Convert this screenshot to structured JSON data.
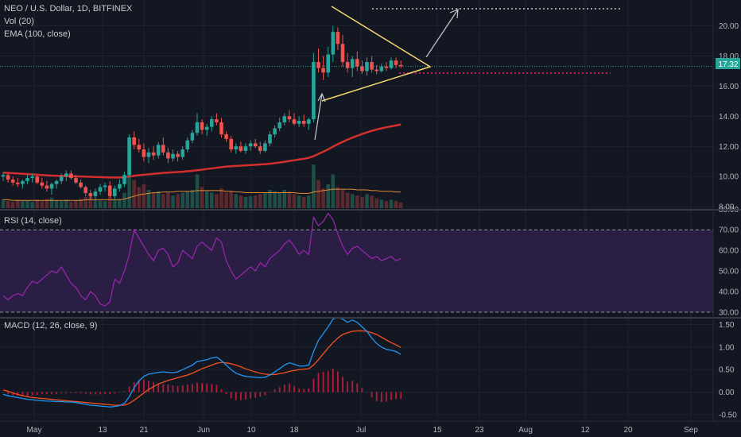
{
  "legend": {
    "symbol": "NEO / U.S. Dollar, 1D, BITFINEX",
    "volume": "Vol (20)",
    "ema": "EMA (100, close)",
    "rsi": "RSI (14, close)",
    "macd": "MACD (12, 26, close, 9)"
  },
  "price_badge": "17.32",
  "colors": {
    "up": "#26a69a",
    "down": "#ef5350",
    "ema": "#d32f2f",
    "volume_ma": "#e08a35",
    "rsi": "#9c27b0",
    "rsi_band": "#2a1e45",
    "macd": "#2196f3",
    "signal": "#f4511e",
    "triangle": "#f5d76e",
    "arrow": "#c7c9d1",
    "background": "#131722"
  },
  "chart_data": [
    {
      "type": "candlestick",
      "title": "NEO / U.S. Dollar, 1D, BITFINEX",
      "x_ticks": [
        "May",
        "13",
        "21",
        "Jun",
        "10",
        "18",
        "Jul",
        "15",
        "23",
        "Aug",
        "12",
        "20",
        "Sep"
      ],
      "y_ticks": [
        "8.00",
        "10.00",
        "12.00",
        "14.00",
        "16.00",
        "18.00",
        "20.00"
      ],
      "ylim": [
        7.9,
        21.4
      ],
      "last_price": 17.32,
      "candles": [
        [
          10.0,
          10.3,
          9.7,
          10.1
        ],
        [
          10.1,
          10.2,
          9.6,
          9.8
        ],
        [
          9.8,
          10.0,
          9.4,
          9.6
        ],
        [
          9.6,
          9.9,
          9.3,
          9.5
        ],
        [
          9.5,
          9.8,
          9.2,
          9.7
        ],
        [
          9.7,
          10.1,
          9.5,
          9.9
        ],
        [
          9.9,
          10.2,
          9.6,
          10.0
        ],
        [
          10.0,
          10.1,
          9.5,
          9.6
        ],
        [
          9.6,
          9.9,
          9.2,
          9.4
        ],
        [
          9.4,
          9.7,
          9.0,
          9.2
        ],
        [
          9.2,
          9.6,
          8.8,
          9.5
        ],
        [
          9.5,
          9.8,
          9.2,
          9.7
        ],
        [
          9.7,
          10.2,
          9.5,
          10.0
        ],
        [
          10.0,
          10.4,
          9.7,
          10.2
        ],
        [
          10.2,
          10.4,
          9.8,
          9.9
        ],
        [
          9.9,
          10.1,
          9.5,
          9.6
        ],
        [
          9.6,
          9.8,
          9.2,
          9.3
        ],
        [
          9.3,
          9.4,
          8.7,
          8.9
        ],
        [
          8.9,
          9.1,
          8.5,
          8.7
        ],
        [
          8.7,
          9.2,
          8.5,
          9.0
        ],
        [
          9.0,
          9.5,
          8.8,
          9.3
        ],
        [
          9.3,
          9.6,
          9.0,
          9.4
        ],
        [
          9.4,
          9.7,
          8.6,
          8.7
        ],
        [
          8.7,
          9.4,
          8.5,
          9.2
        ],
        [
          9.2,
          9.8,
          9.0,
          9.5
        ],
        [
          9.5,
          10.3,
          9.3,
          10.1
        ],
        [
          10.1,
          12.8,
          10.0,
          12.6
        ],
        [
          12.6,
          13.0,
          11.8,
          12.1
        ],
        [
          12.1,
          12.5,
          11.6,
          11.8
        ],
        [
          11.8,
          12.2,
          11.0,
          11.3
        ],
        [
          11.3,
          11.9,
          10.9,
          11.6
        ],
        [
          11.6,
          12.0,
          11.1,
          11.4
        ],
        [
          11.4,
          12.3,
          11.2,
          12.1
        ],
        [
          12.1,
          12.6,
          11.4,
          11.6
        ],
        [
          11.6,
          11.9,
          10.9,
          11.2
        ],
        [
          11.2,
          11.8,
          11.0,
          11.5
        ],
        [
          11.5,
          11.7,
          11.0,
          11.3
        ],
        [
          11.3,
          12.0,
          11.1,
          11.8
        ],
        [
          11.8,
          12.6,
          11.6,
          12.4
        ],
        [
          12.4,
          13.1,
          12.2,
          12.9
        ],
        [
          12.9,
          14.2,
          12.7,
          13.6
        ],
        [
          13.6,
          13.8,
          12.8,
          13.1
        ],
        [
          13.1,
          13.5,
          12.7,
          13.3
        ],
        [
          13.3,
          14.0,
          13.0,
          13.8
        ],
        [
          13.8,
          14.2,
          13.4,
          13.6
        ],
        [
          13.6,
          13.9,
          12.6,
          12.8
        ],
        [
          12.8,
          13.0,
          12.3,
          12.5
        ],
        [
          12.5,
          12.7,
          11.6,
          11.8
        ],
        [
          11.8,
          12.2,
          11.5,
          12.0
        ],
        [
          12.0,
          12.3,
          11.6,
          11.7
        ],
        [
          11.7,
          12.2,
          11.5,
          12.0
        ],
        [
          12.0,
          12.4,
          11.7,
          12.2
        ],
        [
          12.2,
          12.5,
          11.9,
          12.0
        ],
        [
          12.0,
          12.3,
          11.5,
          11.7
        ],
        [
          11.7,
          12.4,
          11.6,
          12.2
        ],
        [
          12.2,
          13.0,
          12.0,
          12.8
        ],
        [
          12.8,
          13.4,
          12.6,
          13.2
        ],
        [
          13.2,
          13.9,
          13.0,
          13.6
        ],
        [
          13.6,
          14.2,
          13.4,
          14.0
        ],
        [
          14.0,
          14.4,
          13.6,
          13.8
        ],
        [
          13.8,
          14.2,
          13.4,
          13.5
        ],
        [
          13.5,
          14.0,
          13.3,
          13.7
        ],
        [
          13.7,
          14.1,
          13.3,
          13.5
        ],
        [
          13.5,
          13.9,
          13.1,
          13.8
        ],
        [
          13.8,
          18.2,
          13.6,
          17.6
        ],
        [
          17.6,
          18.5,
          16.9,
          17.2
        ],
        [
          17.2,
          18.0,
          16.4,
          16.9
        ],
        [
          16.9,
          18.6,
          16.6,
          18.1
        ],
        [
          18.1,
          20.0,
          17.6,
          19.6
        ],
        [
          19.6,
          19.9,
          18.4,
          18.8
        ],
        [
          18.8,
          19.4,
          17.3,
          17.6
        ],
        [
          17.6,
          18.2,
          16.9,
          17.2
        ],
        [
          17.2,
          18.0,
          16.6,
          17.8
        ],
        [
          17.8,
          18.3,
          17.0,
          17.3
        ],
        [
          17.3,
          17.7,
          16.8,
          17.0
        ],
        [
          17.0,
          17.9,
          16.7,
          17.6
        ],
        [
          17.6,
          18.0,
          16.9,
          17.1
        ],
        [
          17.1,
          17.4,
          16.8,
          17.0
        ],
        [
          17.0,
          17.5,
          16.9,
          17.3
        ],
        [
          17.3,
          17.6,
          17.0,
          17.2
        ],
        [
          17.2,
          17.9,
          17.1,
          17.7
        ],
        [
          17.7,
          17.9,
          17.2,
          17.4
        ],
        [
          17.4,
          17.7,
          17.2,
          17.32
        ]
      ],
      "volume": [
        13,
        10,
        9,
        12,
        10,
        11,
        9,
        12,
        10,
        13,
        15,
        11,
        10,
        12,
        9,
        11,
        13,
        16,
        18,
        12,
        11,
        10,
        16,
        12,
        13,
        22,
        58,
        40,
        30,
        34,
        26,
        22,
        24,
        20,
        22,
        18,
        20,
        22,
        24,
        26,
        48,
        30,
        24,
        22,
        20,
        28,
        22,
        24,
        20,
        18,
        16,
        17,
        18,
        20,
        22,
        26,
        24,
        22,
        26,
        24,
        20,
        18,
        16,
        18,
        62,
        40,
        28,
        34,
        48,
        30,
        26,
        22,
        20,
        18,
        16,
        20,
        18,
        14,
        12,
        10,
        12,
        10,
        8
      ],
      "volume_ma": [
        12,
        12,
        11,
        11,
        11,
        11,
        11,
        11,
        11,
        11,
        11,
        11,
        11,
        11,
        11,
        11,
        11,
        12,
        12,
        12,
        12,
        12,
        12,
        12,
        12,
        13,
        15,
        17,
        19,
        20,
        21,
        22,
        22,
        23,
        23,
        23,
        24,
        24,
        24,
        24,
        25,
        25,
        25,
        25,
        25,
        25,
        24,
        24,
        23,
        23,
        22,
        22,
        22,
        22,
        22,
        22,
        22,
        22,
        22,
        22,
        22,
        21,
        21,
        21,
        23,
        24,
        25,
        26,
        27,
        27,
        27,
        27,
        27,
        26,
        26,
        26,
        25,
        25,
        24,
        24,
        24,
        23,
        23
      ],
      "ema": [
        10.25,
        10.24,
        10.22,
        10.2,
        10.18,
        10.16,
        10.14,
        10.12,
        10.1,
        10.08,
        10.06,
        10.05,
        10.04,
        10.03,
        10.02,
        10.01,
        10.0,
        9.99,
        9.98,
        9.97,
        9.96,
        9.95,
        9.94,
        9.94,
        9.94,
        9.95,
        10.0,
        10.05,
        10.09,
        10.12,
        10.15,
        10.18,
        10.21,
        10.24,
        10.26,
        10.28,
        10.3,
        10.32,
        10.35,
        10.38,
        10.42,
        10.46,
        10.5,
        10.54,
        10.58,
        10.62,
        10.66,
        10.68,
        10.7,
        10.72,
        10.74,
        10.76,
        10.78,
        10.8,
        10.82,
        10.85,
        10.89,
        10.93,
        10.98,
        11.03,
        11.08,
        11.13,
        11.18,
        11.24,
        11.35,
        11.5,
        11.65,
        11.8,
        11.98,
        12.15,
        12.3,
        12.45,
        12.58,
        12.7,
        12.82,
        12.93,
        13.03,
        13.12,
        13.2,
        13.27,
        13.33,
        13.39,
        13.45
      ]
    },
    {
      "type": "line",
      "title": "RSI (14, close)",
      "y_ticks": [
        "30.00",
        "40.00",
        "50.00",
        "60.00",
        "70.00",
        "80.00"
      ],
      "ylim": [
        28,
        80.5
      ],
      "bands": [
        30,
        70
      ],
      "series": [
        {
          "values": [
            38,
            36,
            38,
            39,
            38,
            42,
            45,
            44,
            46,
            48,
            50,
            49,
            52,
            48,
            44,
            42,
            38,
            36,
            40,
            38,
            34,
            33,
            35,
            46,
            44,
            50,
            58,
            70,
            66,
            62,
            58,
            55,
            60,
            61,
            58,
            52,
            54,
            60,
            58,
            56,
            62,
            64,
            62,
            60,
            66,
            64,
            55,
            50,
            46,
            48,
            50,
            52,
            50,
            54,
            52,
            56,
            58,
            60,
            63,
            65,
            62,
            58,
            60,
            58,
            76,
            72,
            74,
            78,
            75,
            68,
            62,
            58,
            61,
            62,
            60,
            58,
            56,
            57,
            55,
            56,
            57,
            55,
            56
          ]
        }
      ]
    },
    {
      "type": "bar",
      "title": "MACD (12, 26, close, 9)",
      "y_ticks": [
        "-0.50",
        "0.00",
        "0.50",
        "1.00",
        "1.50"
      ],
      "ylim": [
        -0.52,
        1.65
      ],
      "series": [
        {
          "values": [
            -0.05,
            -0.08,
            -0.1,
            -0.12,
            -0.14,
            -0.16,
            -0.17,
            -0.18,
            -0.19,
            -0.2,
            -0.2,
            -0.21,
            -0.21,
            -0.22,
            -0.22,
            -0.23,
            -0.25,
            -0.27,
            -0.29,
            -0.3,
            -0.31,
            -0.32,
            -0.33,
            -0.32,
            -0.3,
            -0.25,
            -0.1,
            0.1,
            0.25,
            0.35,
            0.4,
            0.42,
            0.44,
            0.45,
            0.44,
            0.43,
            0.45,
            0.5,
            0.55,
            0.6,
            0.68,
            0.7,
            0.72,
            0.76,
            0.78,
            0.7,
            0.6,
            0.5,
            0.42,
            0.38,
            0.35,
            0.34,
            0.33,
            0.32,
            0.33,
            0.38,
            0.45,
            0.52,
            0.6,
            0.65,
            0.62,
            0.58,
            0.58,
            0.6,
            0.9,
            1.15,
            1.3,
            1.45,
            1.62,
            1.66,
            1.62,
            1.55,
            1.6,
            1.55,
            1.45,
            1.35,
            1.2,
            1.08,
            1.0,
            0.95,
            0.93,
            0.9,
            0.84
          ]
        },
        {
          "values": [
            0.05,
            0.02,
            -0.02,
            -0.05,
            -0.08,
            -0.1,
            -0.12,
            -0.13,
            -0.14,
            -0.15,
            -0.16,
            -0.17,
            -0.18,
            -0.19,
            -0.2,
            -0.21,
            -0.22,
            -0.23,
            -0.24,
            -0.25,
            -0.26,
            -0.27,
            -0.28,
            -0.29,
            -0.29,
            -0.29,
            -0.25,
            -0.18,
            -0.1,
            -0.02,
            0.06,
            0.12,
            0.18,
            0.22,
            0.26,
            0.29,
            0.32,
            0.35,
            0.38,
            0.42,
            0.47,
            0.52,
            0.56,
            0.6,
            0.64,
            0.66,
            0.65,
            0.63,
            0.6,
            0.56,
            0.52,
            0.48,
            0.45,
            0.42,
            0.4,
            0.39,
            0.39,
            0.41,
            0.43,
            0.46,
            0.48,
            0.5,
            0.51,
            0.52,
            0.6,
            0.72,
            0.85,
            0.98,
            1.1,
            1.2,
            1.28,
            1.32,
            1.35,
            1.36,
            1.36,
            1.35,
            1.32,
            1.28,
            1.22,
            1.16,
            1.1,
            1.05,
            0.99
          ]
        },
        {
          "values": [
            0.0,
            -0.05,
            -0.07,
            -0.08,
            -0.08,
            -0.08,
            -0.07,
            -0.06,
            -0.05,
            -0.05,
            -0.04,
            -0.04,
            -0.03,
            -0.03,
            -0.02,
            -0.02,
            -0.03,
            -0.04,
            -0.05,
            -0.05,
            -0.05,
            -0.05,
            -0.05,
            -0.03,
            -0.01,
            0.02,
            0.12,
            0.22,
            0.26,
            0.28,
            0.25,
            0.22,
            0.2,
            0.18,
            0.17,
            0.15,
            0.14,
            0.15,
            0.17,
            0.18,
            0.21,
            0.2,
            0.19,
            0.18,
            0.16,
            0.06,
            -0.05,
            -0.13,
            -0.18,
            -0.18,
            -0.17,
            -0.14,
            -0.12,
            -0.1,
            -0.07,
            -0.01,
            0.06,
            0.11,
            0.17,
            0.19,
            0.14,
            0.08,
            0.07,
            0.08,
            0.3,
            0.43,
            0.45,
            0.47,
            0.52,
            0.46,
            0.34,
            0.23,
            0.25,
            0.19,
            0.09,
            0.0,
            -0.12,
            -0.2,
            -0.22,
            -0.21,
            -0.17,
            -0.15,
            -0.15
          ]
        }
      ]
    }
  ]
}
